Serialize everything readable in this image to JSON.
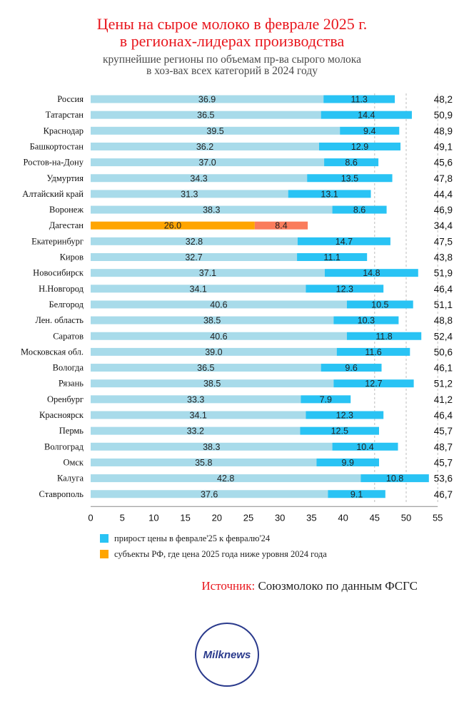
{
  "title_line1": "Цены на сырое молоко в феврале 2025 г.",
  "title_line2": "в регионах-лидерах производства",
  "subtitle_line1": "крупнейшие регионы по объемам пр-ва сырого молока",
  "subtitle_line2": "в хоз-вах всех категорий в 2024 году",
  "legend": [
    {
      "label": "прирост цены в феврале'25 к февралю'24",
      "color": "#29c3f4"
    },
    {
      "label": "субъекты РФ, где цена 2025 года ниже уровня 2024 года",
      "color": "#ffa500"
    }
  ],
  "source_label": "Источник:",
  "source_text": "Союзмолоко по данным ФСГС",
  "logo_text": "Milknews",
  "colors": {
    "base": "#a8dbea",
    "growth": "#29c3f4",
    "highlight_base": "#ffa500",
    "highlight_part": "#fa7c5c",
    "title": "#e8151c"
  },
  "chart_data": {
    "type": "bar",
    "orientation": "horizontal",
    "stacked": true,
    "categories": [
      "Россия",
      "Татарстан",
      "Краснодар",
      "Башкортостан",
      "Ростов-на-Дону",
      "Удмуртия",
      "Алтайский край",
      "Воронеж",
      "Дагестан",
      "Екатеринбург",
      "Киров",
      "Новосибирск",
      "Н.Новгород",
      "Белгород",
      "Лен. область",
      "Саратов",
      "Московская обл.",
      "Вологда",
      "Рязань",
      "Оренбург",
      "Красноярск",
      "Пермь",
      "Волгоград",
      "Омск",
      "Калуга",
      "Ставрополь"
    ],
    "series": [
      {
        "values": [
          36.9,
          36.5,
          39.5,
          36.2,
          37.0,
          34.3,
          31.3,
          38.3,
          26.0,
          32.8,
          32.7,
          37.1,
          34.1,
          40.6,
          38.5,
          40.6,
          39.0,
          36.5,
          38.5,
          33.3,
          34.1,
          33.2,
          38.3,
          35.8,
          42.8,
          37.6
        ],
        "labels": [
          "36.9",
          "36.5",
          "39.5",
          "36.2",
          "37.0",
          "34.3",
          "31.3",
          "38.3",
          "26.0",
          "32.8",
          "32.7",
          "37.1",
          "34.1",
          "40.6",
          "38.5",
          "40.6",
          "39.0",
          "36.5",
          "38.5",
          "33.3",
          "34.1",
          "33.2",
          "38.3",
          "35.8",
          "42.8",
          "37.6"
        ]
      },
      {
        "name": "прирост цены в феврале'25 к февралю'24",
        "values": [
          11.3,
          14.4,
          9.4,
          12.9,
          8.6,
          13.5,
          13.1,
          8.6,
          8.4,
          14.7,
          11.1,
          14.8,
          12.3,
          10.5,
          10.3,
          11.8,
          11.6,
          9.6,
          12.7,
          7.9,
          12.3,
          12.5,
          10.4,
          9.9,
          10.8,
          9.1
        ],
        "labels": [
          "11.3",
          "14.4",
          "9.4",
          "12.9",
          "8.6",
          "13.5",
          "13.1",
          "8.6",
          "8.4",
          "14.7",
          "11.1",
          "14.8",
          "12.3",
          "10.5",
          "10.3",
          "11.8",
          "11.6",
          "9.6",
          "12.7",
          "7.9",
          "12.3",
          "12.5",
          "10.4",
          "9.9",
          "10.8",
          "9.1"
        ]
      }
    ],
    "totals": [
      "48,2",
      "50,9",
      "48,9",
      "49,1",
      "45,6",
      "47,8",
      "44,4",
      "46,9",
      "34,4",
      "47,5",
      "43,8",
      "51,9",
      "46,4",
      "51,1",
      "48,8",
      "52,4",
      "50,6",
      "46,1",
      "51,2",
      "41,2",
      "46,4",
      "45,7",
      "48,7",
      "45,7",
      "53,6",
      "46,7"
    ],
    "highlight": [
      "Дагестан"
    ],
    "xlim": [
      0,
      55
    ],
    "xticks": [
      "0",
      "5",
      "10",
      "15",
      "20",
      "25",
      "30",
      "35",
      "40",
      "45",
      "50",
      "55"
    ],
    "grid": "dashed vertical at 45, 50, 55"
  }
}
